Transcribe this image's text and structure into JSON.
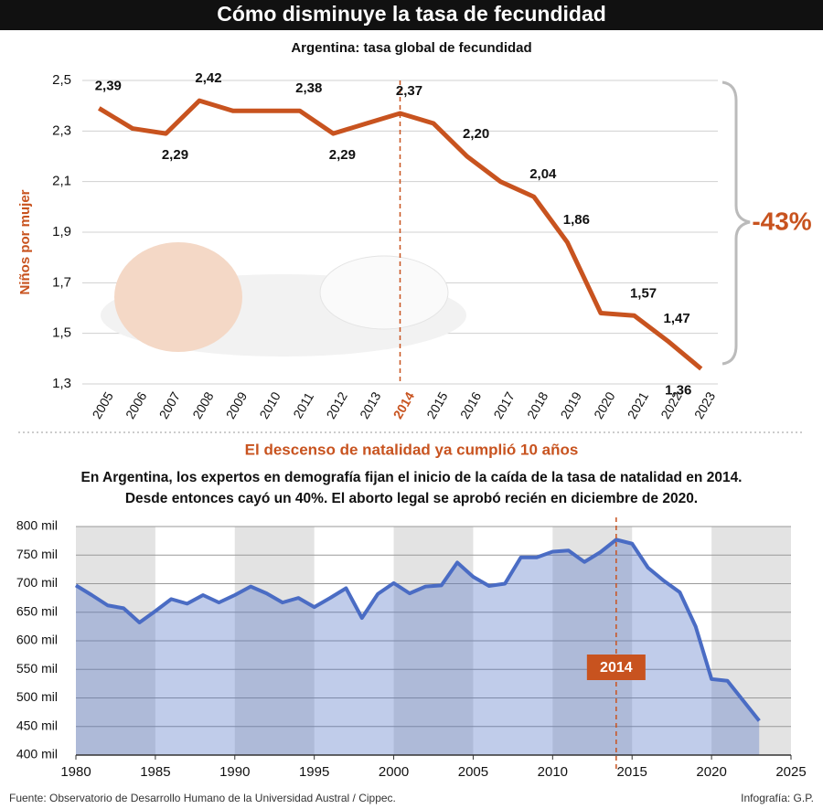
{
  "title": "Cómo disminuye la tasa de fecundidad",
  "source": "Fuente: Observatorio de Desarrollo Humano de la Universidad Austral / Cippec.",
  "credit": "Infografía: G.P.",
  "chart_data": [
    {
      "type": "line",
      "subtitle": "Argentina: tasa global de fecundidad",
      "y_label": "Niños por mujer",
      "annotation": "-43%",
      "highlight": "2014",
      "color": "#c8531f",
      "categories": [
        "2005",
        "2006",
        "2007",
        "2008",
        "2009",
        "2010",
        "2011",
        "2012",
        "2013",
        "2014",
        "2015",
        "2016",
        "2017",
        "2018",
        "2019",
        "2020",
        "2021",
        "2022",
        "2023"
      ],
      "values": [
        2.39,
        2.31,
        2.29,
        2.42,
        2.38,
        2.38,
        2.38,
        2.29,
        2.33,
        2.37,
        2.33,
        2.2,
        2.1,
        2.04,
        1.86,
        1.58,
        1.57,
        1.47,
        1.36
      ],
      "value_labels": [
        "2,39",
        null,
        "2,29",
        "2,42",
        null,
        null,
        "2,38",
        "2,29",
        null,
        "2,37",
        null,
        "2,20",
        null,
        "2,04",
        "1,86",
        null,
        "1,57",
        "1,47",
        "1,36"
      ],
      "ylim": [
        1.3,
        2.5
      ],
      "yticks": [
        {
          "value": 1.3,
          "label": "1,3"
        },
        {
          "value": 1.5,
          "label": "1,5"
        },
        {
          "value": 1.7,
          "label": "1,7"
        },
        {
          "value": 1.9,
          "label": "1,9"
        },
        {
          "value": 2.1,
          "label": "2,1"
        },
        {
          "value": 2.3,
          "label": "2,3"
        },
        {
          "value": 2.5,
          "label": "2,5"
        }
      ],
      "grid": true
    },
    {
      "type": "area",
      "title": "El descenso de natalidad ya cumplió 10 años",
      "subtitle": [
        "En Argentina, los expertos en demografía fijan el inicio de la caída de la tasa de natalidad en 2014.",
        "Desde entonces cayó un 40%. El aborto legal se aprobó recién en diciembre de 2020."
      ],
      "color": "#4a6cc4",
      "x": [
        1980,
        1981,
        1982,
        1983,
        1984,
        1985,
        1986,
        1987,
        1988,
        1989,
        1990,
        1991,
        1992,
        1993,
        1994,
        1995,
        1996,
        1997,
        1998,
        1999,
        2000,
        2001,
        2002,
        2003,
        2004,
        2005,
        2006,
        2007,
        2008,
        2009,
        2010,
        2011,
        2012,
        2013,
        2014,
        2015,
        2016,
        2017,
        2018,
        2019,
        2020,
        2021,
        2022,
        2023
      ],
      "values": [
        697000,
        680000,
        662000,
        657000,
        632000,
        652000,
        673000,
        665000,
        680000,
        667000,
        680000,
        695000,
        683000,
        667000,
        675000,
        659000,
        675000,
        692000,
        640000,
        682000,
        701000,
        683000,
        695000,
        697000,
        737000,
        712000,
        696000,
        700000,
        746000,
        746000,
        756000,
        758000,
        738000,
        755000,
        777000,
        770000,
        728000,
        705000,
        685000,
        625000,
        533000,
        530000,
        495000,
        460000
      ],
      "annotation": {
        "x": 2014
      },
      "xlim": [
        1980,
        2025
      ],
      "xticks": [
        1980,
        1985,
        1990,
        1995,
        2000,
        2005,
        2010,
        2015,
        2020,
        2025
      ],
      "ylim": [
        400000,
        800000
      ],
      "yticks": [
        {
          "value": 400000,
          "label": "400 mil"
        },
        {
          "value": 450000,
          "label": "450 mil"
        },
        {
          "value": 500000,
          "label": "500 mil"
        },
        {
          "value": 550000,
          "label": "550 mil"
        },
        {
          "value": 600000,
          "label": "600 mil"
        },
        {
          "value": 650000,
          "label": "650 mil"
        },
        {
          "value": 700000,
          "label": "700 mil"
        },
        {
          "value": 750000,
          "label": "750 mil"
        },
        {
          "value": 800000,
          "label": "800 mil"
        }
      ],
      "grid": true
    }
  ]
}
